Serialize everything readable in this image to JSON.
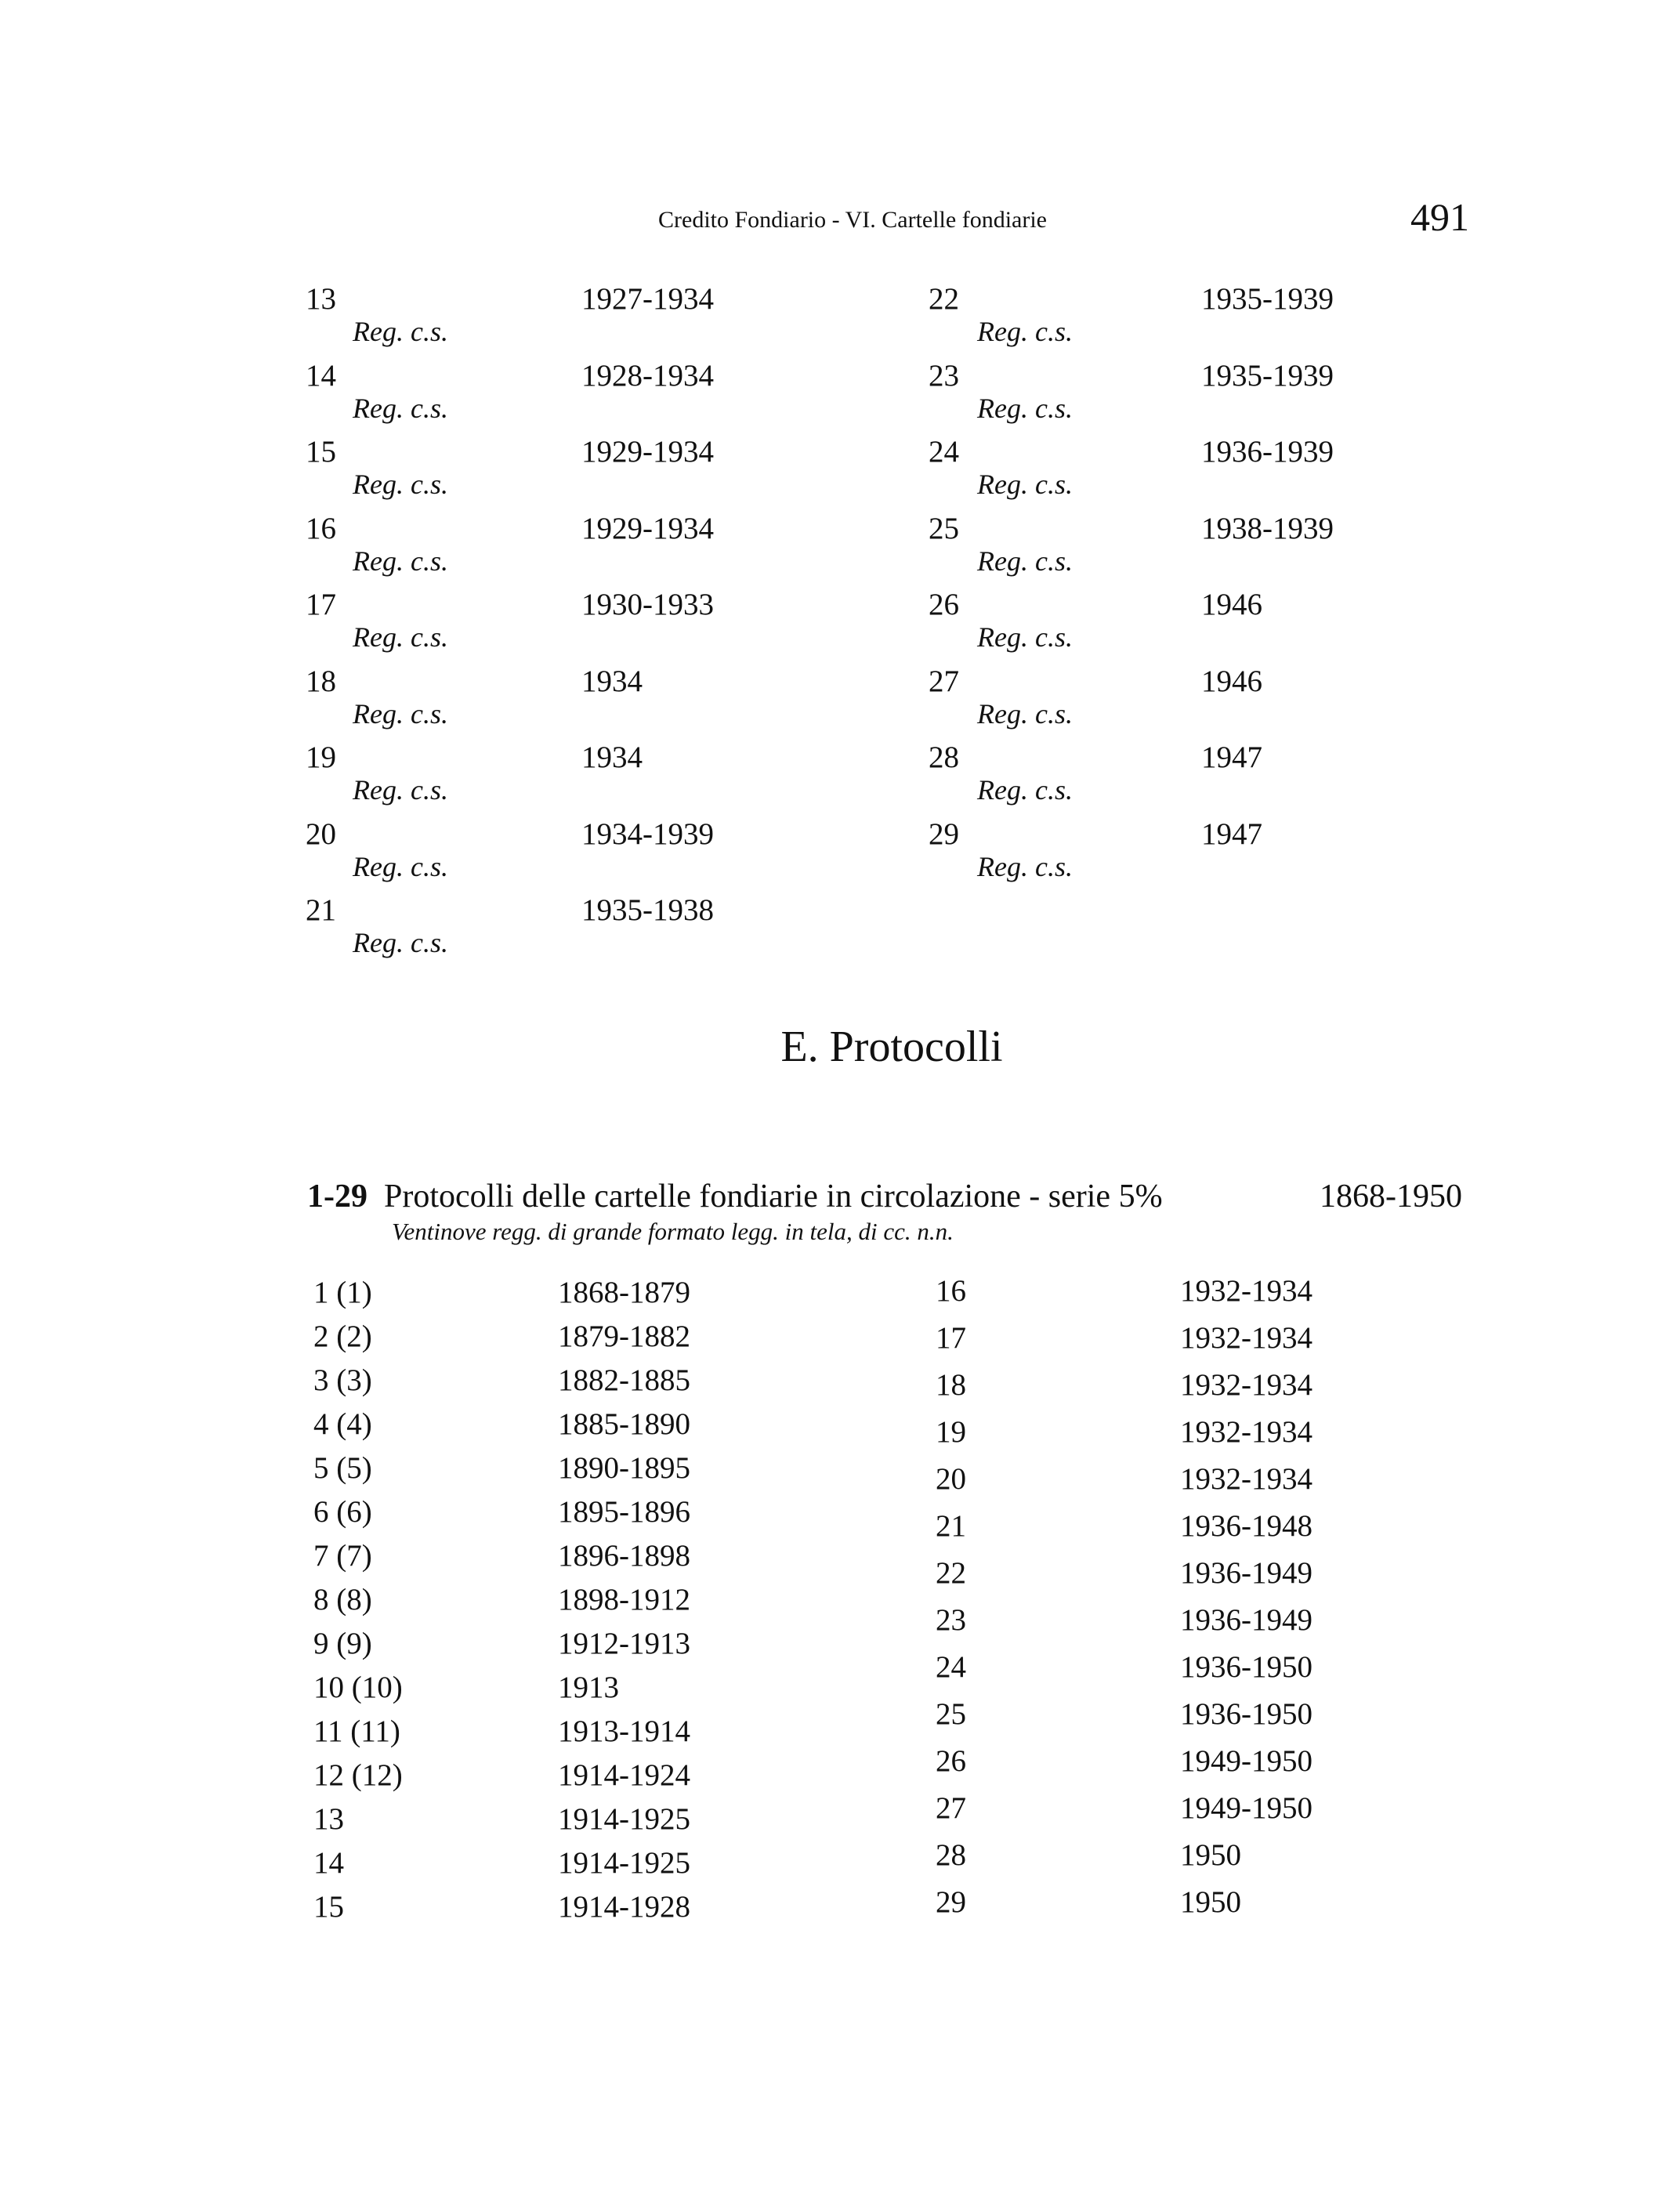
{
  "header": {
    "running_title": "Credito Fondiario - VI. Cartelle fondiarie",
    "page_number": "491"
  },
  "top_list": {
    "left": [
      {
        "num": "13",
        "note": "Reg. c.s.",
        "date": "1927-1934"
      },
      {
        "num": "14",
        "note": "Reg. c.s.",
        "date": "1928-1934"
      },
      {
        "num": "15",
        "note": "Reg. c.s.",
        "date": "1929-1934"
      },
      {
        "num": "16",
        "note": "Reg. c.s.",
        "date": "1929-1934"
      },
      {
        "num": "17",
        "note": "Reg. c.s.",
        "date": "1930-1933"
      },
      {
        "num": "18",
        "note": "Reg. c.s.",
        "date": "1934"
      },
      {
        "num": "19",
        "note": "Reg. c.s.",
        "date": "1934"
      },
      {
        "num": "20",
        "note": "Reg. c.s.",
        "date": "1934-1939"
      },
      {
        "num": "21",
        "note": "Reg. c.s.",
        "date": "1935-1938"
      }
    ],
    "right": [
      {
        "num": "22",
        "note": "Reg. c.s.",
        "date": "1935-1939"
      },
      {
        "num": "23",
        "note": "Reg. c.s.",
        "date": "1935-1939"
      },
      {
        "num": "24",
        "note": "Reg. c.s.",
        "date": "1936-1939"
      },
      {
        "num": "25",
        "note": "Reg. c.s.",
        "date": "1938-1939"
      },
      {
        "num": "26",
        "note": "Reg. c.s.",
        "date": "1946"
      },
      {
        "num": "27",
        "note": "Reg. c.s.",
        "date": "1946"
      },
      {
        "num": "28",
        "note": "Reg. c.s.",
        "date": "1947"
      },
      {
        "num": "29",
        "note": "Reg. c.s.",
        "date": "1947"
      }
    ]
  },
  "section": {
    "title": "E. Protocolli"
  },
  "entry": {
    "range": "1-29",
    "title": "Protocolli delle cartelle fondiarie in circolazione - serie 5%",
    "dates": "1868-1950",
    "description": "Ventinove regg. di grande formato legg. in tela, di cc. n.n."
  },
  "bottom_list": {
    "left": [
      {
        "num": "1 (1)",
        "date": "1868-1879"
      },
      {
        "num": "2 (2)",
        "date": "1879-1882"
      },
      {
        "num": "3 (3)",
        "date": "1882-1885"
      },
      {
        "num": "4 (4)",
        "date": "1885-1890"
      },
      {
        "num": "5 (5)",
        "date": "1890-1895"
      },
      {
        "num": "6 (6)",
        "date": "1895-1896"
      },
      {
        "num": "7 (7)",
        "date": "1896-1898"
      },
      {
        "num": "8 (8)",
        "date": "1898-1912"
      },
      {
        "num": "9 (9)",
        "date": "1912-1913"
      },
      {
        "num": "10 (10)",
        "date": "1913"
      },
      {
        "num": "11 (11)",
        "date": "1913-1914"
      },
      {
        "num": "12 (12)",
        "date": "1914-1924"
      },
      {
        "num": "13",
        "date": "1914-1925"
      },
      {
        "num": "14",
        "date": "1914-1925"
      },
      {
        "num": "15",
        "date": "1914-1928"
      }
    ],
    "right": [
      {
        "num": "16",
        "date": "1932-1934"
      },
      {
        "num": "17",
        "date": "1932-1934"
      },
      {
        "num": "18",
        "date": "1932-1934"
      },
      {
        "num": "19",
        "date": "1932-1934"
      },
      {
        "num": "20",
        "date": "1932-1934"
      },
      {
        "num": "21",
        "date": "1936-1948"
      },
      {
        "num": "22",
        "date": "1936-1949"
      },
      {
        "num": "23",
        "date": "1936-1949"
      },
      {
        "num": "24",
        "date": "1936-1950"
      },
      {
        "num": "25",
        "date": "1936-1950"
      },
      {
        "num": "26",
        "date": "1949-1950"
      },
      {
        "num": "27",
        "date": "1949-1950"
      },
      {
        "num": "28",
        "date": "1950"
      },
      {
        "num": "29",
        "date": "1950"
      }
    ]
  }
}
